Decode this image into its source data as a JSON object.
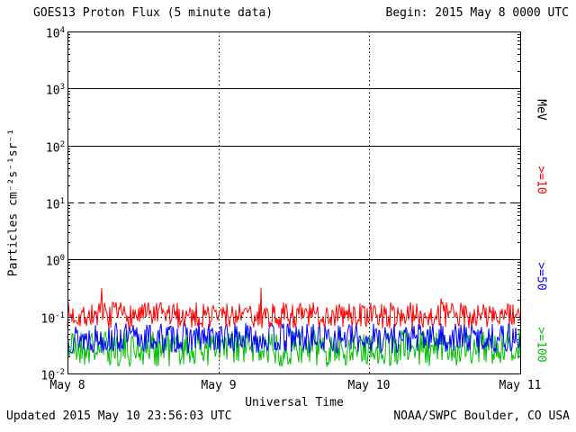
{
  "footer": {
    "updated": "Updated 2015 May 10 23:56:03 UTC",
    "source": "NOAA/SWPC Boulder, CO USA"
  },
  "chart_data": {
    "type": "line",
    "title": "GOES13 Proton Flux (5 minute data)",
    "begin_label": "Begin: 2015 May 8 0000 UTC",
    "xlabel": "Universal Time",
    "ylabel": "Particles cm⁻²s⁻¹sr⁻¹",
    "unit_label": "MeV",
    "y_scale": "log",
    "ylim": [
      0.01,
      10000
    ],
    "y_tick_exponents": [
      4,
      3,
      2,
      1,
      0,
      -1,
      -2
    ],
    "x_ticks": [
      "May 8",
      "May 9",
      "May 10",
      "May 11"
    ],
    "x_span_days": 3,
    "grid": {
      "horizontal": [
        {
          "value": 1000,
          "style": "solid"
        },
        {
          "value": 100,
          "style": "solid"
        },
        {
          "value": 10,
          "style": "dashed"
        },
        {
          "value": 1,
          "style": "solid"
        },
        {
          "value": 0.1,
          "style": "dotted"
        }
      ],
      "vertical_dotted_ticks": [
        "May 9",
        "May 10"
      ]
    },
    "legend_position": "right",
    "series": [
      {
        "name": ">=10",
        "unit": "MeV",
        "color": "#ff0000",
        "approx_median": 0.105,
        "approx_range": [
          0.06,
          0.3
        ],
        "description": "noisy quiet-time background hovering near 0.1"
      },
      {
        "name": ">=50",
        "unit": "MeV",
        "color": "#0000ff",
        "approx_median": 0.042,
        "approx_range": [
          0.022,
          0.08
        ],
        "description": "noisy quiet-time background near 0.04"
      },
      {
        "name": ">=100",
        "unit": "MeV",
        "color": "#00c000",
        "approx_median": 0.028,
        "approx_range": [
          0.013,
          0.06
        ],
        "description": "noisy quiet-time background near 0.03"
      }
    ]
  }
}
